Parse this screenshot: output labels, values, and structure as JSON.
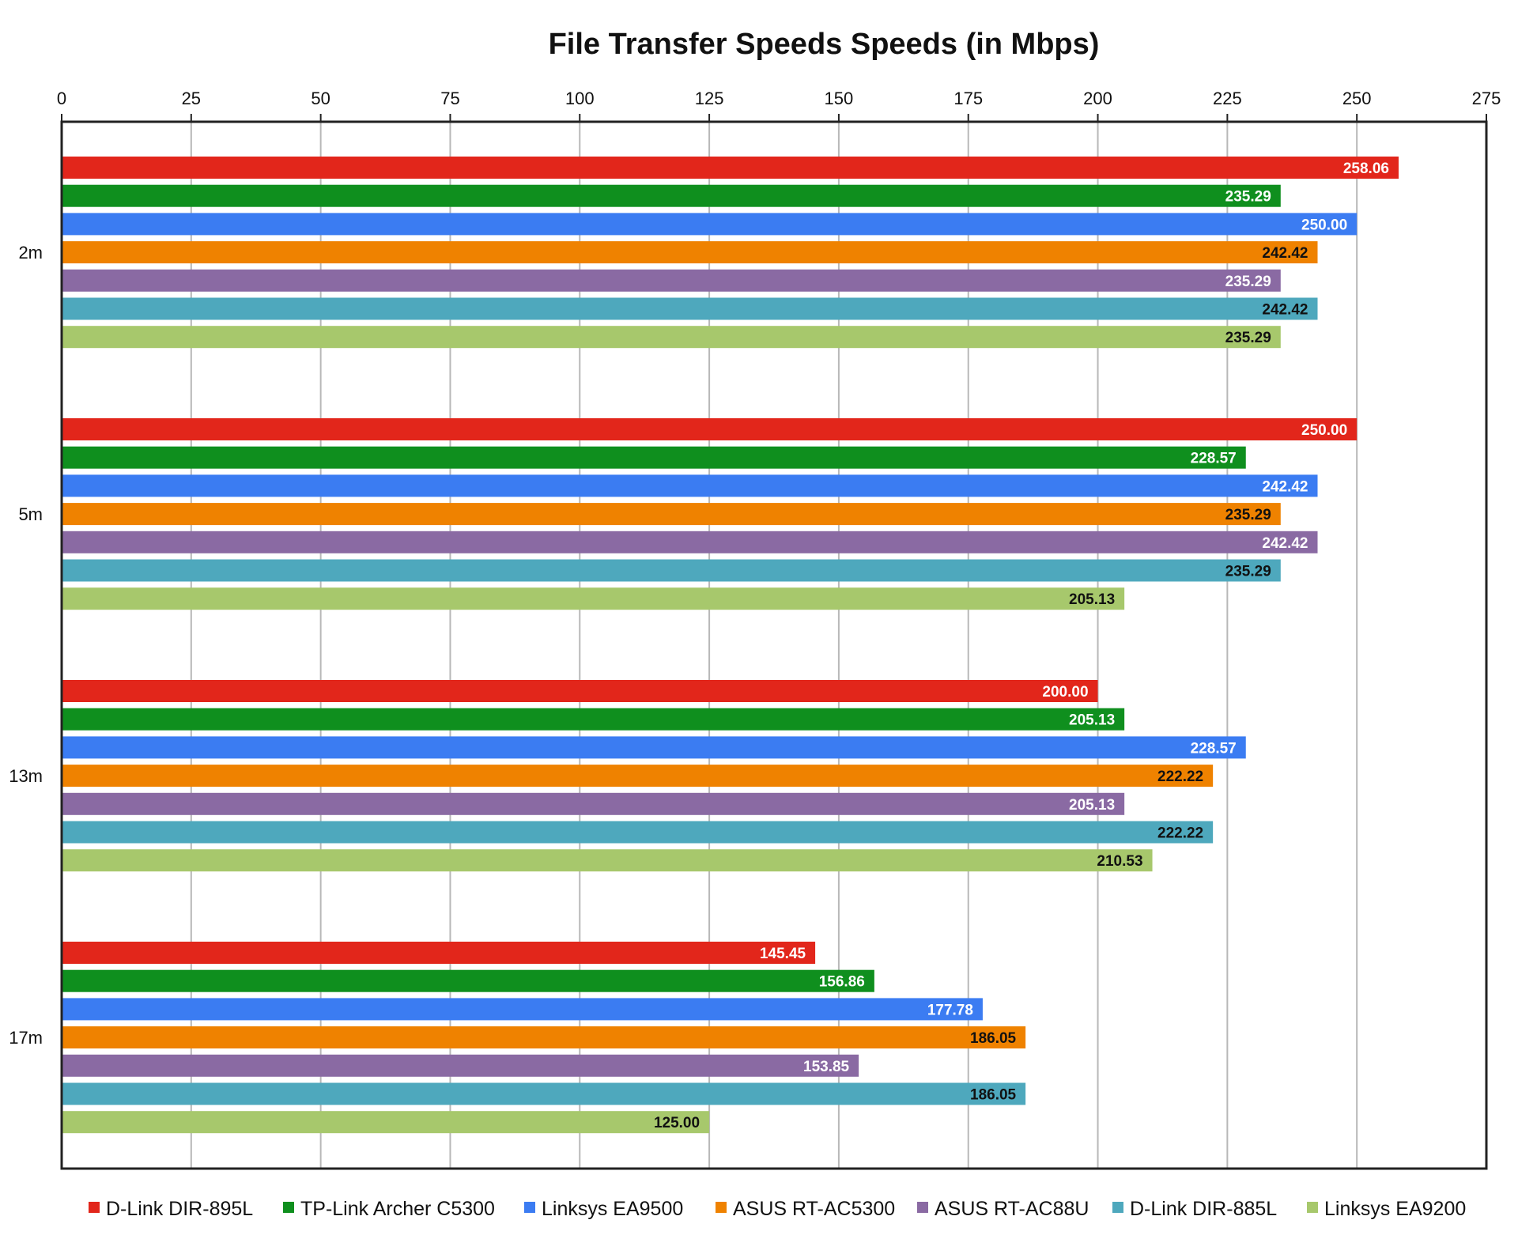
{
  "chart_data": {
    "type": "bar",
    "orientation": "horizontal",
    "title": "File Transfer Speeds Speeds (in Mbps)",
    "xlabel": "",
    "ylabel": "",
    "xlim": [
      0,
      275
    ],
    "x_ticks": [
      "0",
      "25",
      "50",
      "75",
      "100",
      "125",
      "150",
      "175",
      "200",
      "225",
      "250",
      "275"
    ],
    "x_axis_position": "top",
    "grid": true,
    "legend_position": "bottom",
    "categories": [
      "2m",
      "5m",
      "13m",
      "17m"
    ],
    "series": [
      {
        "name": "D-Link DIR-895L",
        "color": "#e2261b",
        "label_color": "#ffffff",
        "values": [
          258.06,
          250.0,
          200.0,
          145.45
        ],
        "labels": [
          "258.06",
          "250.00",
          "200.00",
          "145.45"
        ]
      },
      {
        "name": "TP-Link Archer C5300",
        "color": "#0f8f1e",
        "label_color": "#ffffff",
        "values": [
          235.29,
          228.57,
          205.13,
          156.86
        ],
        "labels": [
          "235.29",
          "228.57",
          "205.13",
          "156.86"
        ]
      },
      {
        "name": "Linksys EA9500",
        "color": "#3b7cf2",
        "label_color": "#ffffff",
        "values": [
          250.0,
          242.42,
          228.57,
          177.78
        ],
        "labels": [
          "250.00",
          "242.42",
          "228.57",
          "177.78"
        ]
      },
      {
        "name": "ASUS RT-AC5300",
        "color": "#ef8200",
        "label_color": "#111111",
        "values": [
          242.42,
          235.29,
          222.22,
          186.05
        ],
        "labels": [
          "242.42",
          "235.29",
          "222.22",
          "186.05"
        ]
      },
      {
        "name": "ASUS RT-AC88U",
        "color": "#8a6aa3",
        "label_color": "#ffffff",
        "values": [
          235.29,
          242.42,
          205.13,
          153.85
        ],
        "labels": [
          "235.29",
          "242.42",
          "205.13",
          "153.85"
        ]
      },
      {
        "name": "D-Link DIR-885L",
        "color": "#4ea8bd",
        "label_color": "#111111",
        "values": [
          242.42,
          235.29,
          222.22,
          186.05
        ],
        "labels": [
          "242.42",
          "235.29",
          "222.22",
          "186.05"
        ]
      },
      {
        "name": "Linksys EA9200",
        "color": "#a7c86c",
        "label_color": "#111111",
        "values": [
          235.29,
          205.13,
          210.53,
          125.0
        ],
        "labels": [
          "235.29",
          "205.13",
          "210.53",
          "125.00"
        ]
      }
    ]
  }
}
